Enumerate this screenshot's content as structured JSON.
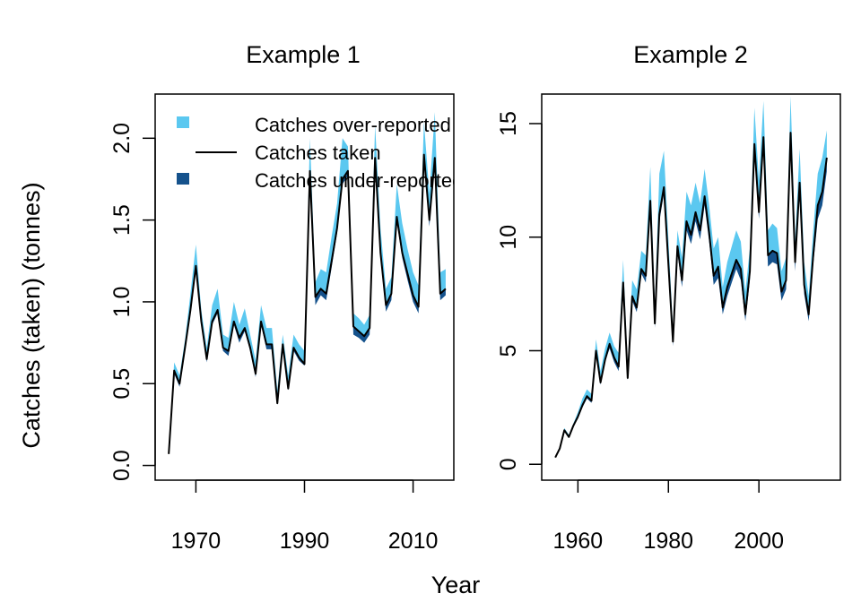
{
  "figure": {
    "xlabel": "Year",
    "ylabel": "Catches (taken) (tonnes)"
  },
  "colors": {
    "over_reported": "#5bc8f0",
    "taken": "#000000",
    "under_reported": "#15528c",
    "frame": "#000000"
  },
  "legend": {
    "items": [
      {
        "label": "Catches over-reported",
        "swatch": "over_reported"
      },
      {
        "label": "Catches taken",
        "swatch": "taken_line"
      },
      {
        "label": "Catches under-reported",
        "swatch": "under_reported"
      }
    ]
  },
  "chart_data": [
    {
      "type": "area",
      "title": "Example 1",
      "xlim": [
        1962.5,
        2017.5
      ],
      "ylim": [
        -0.09,
        2.27
      ],
      "xticks": [
        1970,
        1990,
        2010
      ],
      "xtick_labels": [
        "1970",
        "1990",
        "2010"
      ],
      "yticks": [
        0.0,
        0.5,
        1.0,
        1.5,
        2.0
      ],
      "ytick_labels": [
        "0.0",
        "0.5",
        "1.0",
        "1.5",
        "2.0"
      ],
      "legend_position": "top-right",
      "series": [
        {
          "name": "Catches taken",
          "x": [
            1965,
            1966,
            1967,
            1968,
            1969,
            1970,
            1971,
            1972,
            1973,
            1974,
            1975,
            1976,
            1977,
            1978,
            1979,
            1980,
            1981,
            1982,
            1983,
            1984,
            1985,
            1986,
            1987,
            1988,
            1989,
            1990,
            1991,
            1992,
            1993,
            1994,
            1995,
            1996,
            1997,
            1998,
            1999,
            2000,
            2001,
            2002,
            2003,
            2004,
            2005,
            2006,
            2007,
            2008,
            2009,
            2010,
            2011,
            2012,
            2013,
            2014,
            2015,
            2016
          ],
          "y": [
            0.07,
            0.58,
            0.5,
            0.72,
            0.95,
            1.22,
            0.88,
            0.65,
            0.88,
            0.95,
            0.72,
            0.7,
            0.88,
            0.78,
            0.84,
            0.72,
            0.56,
            0.88,
            0.74,
            0.74,
            0.38,
            0.74,
            0.47,
            0.72,
            0.66,
            0.62,
            1.8,
            1.03,
            1.08,
            1.05,
            1.25,
            1.45,
            1.75,
            1.8,
            0.85,
            0.82,
            0.79,
            0.84,
            1.88,
            1.3,
            0.98,
            1.05,
            1.52,
            1.3,
            1.17,
            1.04,
            0.97,
            1.9,
            1.5,
            1.88,
            1.05,
            1.08
          ]
        },
        {
          "name": "Catches over-reported",
          "x": [
            1965,
            1966,
            1967,
            1968,
            1969,
            1970,
            1971,
            1972,
            1973,
            1974,
            1975,
            1976,
            1977,
            1978,
            1979,
            1980,
            1981,
            1982,
            1983,
            1984,
            1985,
            1986,
            1987,
            1988,
            1989,
            1990,
            1991,
            1992,
            1993,
            1994,
            1995,
            1996,
            1997,
            1998,
            1999,
            2000,
            2001,
            2002,
            2003,
            2004,
            2005,
            2006,
            2007,
            2008,
            2009,
            2010,
            2011,
            2012,
            2013,
            2014,
            2015,
            2016
          ],
          "y": [
            0.07,
            0.63,
            0.55,
            0.77,
            1.05,
            1.35,
            0.95,
            0.72,
            0.98,
            1.08,
            0.8,
            0.78,
            1.0,
            0.86,
            0.96,
            0.8,
            0.64,
            0.98,
            0.84,
            0.84,
            0.46,
            0.8,
            0.55,
            0.8,
            0.74,
            0.7,
            2.0,
            1.12,
            1.2,
            1.18,
            1.4,
            1.6,
            2.0,
            1.95,
            0.93,
            0.9,
            0.86,
            0.92,
            2.08,
            1.45,
            1.08,
            1.15,
            1.72,
            1.48,
            1.32,
            1.18,
            1.1,
            2.1,
            1.66,
            2.16,
            1.18,
            1.2
          ]
        },
        {
          "name": "Catches under-reported",
          "x": [
            1965,
            1966,
            1967,
            1968,
            1969,
            1970,
            1971,
            1972,
            1973,
            1974,
            1975,
            1976,
            1977,
            1978,
            1979,
            1980,
            1981,
            1982,
            1983,
            1984,
            1985,
            1986,
            1987,
            1988,
            1989,
            1990,
            1991,
            1992,
            1993,
            1994,
            1995,
            1996,
            1997,
            1998,
            1999,
            2000,
            2001,
            2002,
            2003,
            2004,
            2005,
            2006,
            2007,
            2008,
            2009,
            2010,
            2011,
            2012,
            2013,
            2014,
            2015,
            2016
          ],
          "y": [
            0.07,
            0.56,
            0.48,
            0.71,
            0.94,
            1.2,
            0.87,
            0.63,
            0.86,
            0.93,
            0.7,
            0.67,
            0.86,
            0.75,
            0.82,
            0.7,
            0.54,
            0.86,
            0.71,
            0.71,
            0.37,
            0.73,
            0.46,
            0.7,
            0.64,
            0.61,
            1.78,
            0.98,
            1.04,
            1.01,
            1.21,
            1.42,
            1.72,
            1.77,
            0.8,
            0.78,
            0.75,
            0.8,
            1.85,
            1.27,
            0.94,
            1.01,
            1.49,
            1.27,
            1.13,
            1.0,
            0.93,
            1.86,
            1.46,
            1.84,
            1.01,
            1.04
          ]
        }
      ]
    },
    {
      "type": "area",
      "title": "Example 2",
      "xlim": [
        1952,
        2018
      ],
      "ylim": [
        -0.7,
        16.3
      ],
      "xticks": [
        1960,
        1980,
        2000
      ],
      "xtick_labels": [
        "1960",
        "1980",
        "2000"
      ],
      "yticks": [
        0,
        5,
        10,
        15
      ],
      "ytick_labels": [
        "0",
        "5",
        "10",
        "15"
      ],
      "series": [
        {
          "name": "Catches taken",
          "x": [
            1955,
            1956,
            1957,
            1958,
            1959,
            1960,
            1961,
            1962,
            1963,
            1964,
            1965,
            1966,
            1967,
            1968,
            1969,
            1970,
            1971,
            1972,
            1973,
            1974,
            1975,
            1976,
            1977,
            1978,
            1979,
            1980,
            1981,
            1982,
            1983,
            1984,
            1985,
            1986,
            1987,
            1988,
            1989,
            1990,
            1991,
            1992,
            1993,
            1994,
            1995,
            1996,
            1997,
            1998,
            1999,
            2000,
            2001,
            2002,
            2003,
            2004,
            2005,
            2006,
            2007,
            2008,
            2009,
            2010,
            2011,
            2012,
            2013,
            2014,
            2015
          ],
          "y": [
            0.3,
            0.7,
            1.5,
            1.2,
            1.7,
            2.1,
            2.6,
            3.0,
            2.8,
            5.0,
            3.6,
            4.6,
            5.3,
            4.7,
            4.3,
            8.0,
            3.8,
            7.4,
            6.9,
            8.6,
            8.3,
            11.6,
            6.2,
            11.0,
            12.2,
            8.8,
            5.4,
            9.6,
            8.1,
            10.7,
            10.1,
            11.1,
            10.3,
            11.8,
            10.2,
            8.3,
            8.7,
            6.9,
            7.8,
            8.4,
            9.0,
            8.6,
            6.6,
            8.5,
            14.1,
            11.1,
            14.4,
            9.2,
            9.4,
            9.3,
            7.6,
            8.1,
            14.6,
            8.9,
            12.4,
            7.9,
            6.6,
            9.2,
            11.4,
            12.0,
            13.5
          ]
        },
        {
          "name": "Catches over-reported",
          "x": [
            1955,
            1956,
            1957,
            1958,
            1959,
            1960,
            1961,
            1962,
            1963,
            1964,
            1965,
            1966,
            1967,
            1968,
            1969,
            1970,
            1971,
            1972,
            1973,
            1974,
            1975,
            1976,
            1977,
            1978,
            1979,
            1980,
            1981,
            1982,
            1983,
            1984,
            1985,
            1986,
            1987,
            1988,
            1989,
            1990,
            1991,
            1992,
            1993,
            1994,
            1995,
            1996,
            1997,
            1998,
            1999,
            2000,
            2001,
            2002,
            2003,
            2004,
            2005,
            2006,
            2007,
            2008,
            2009,
            2010,
            2011,
            2012,
            2013,
            2014,
            2015
          ],
          "y": [
            0.3,
            0.8,
            1.6,
            1.3,
            1.8,
            2.3,
            2.9,
            3.3,
            3.1,
            5.5,
            4.1,
            5.1,
            5.8,
            5.2,
            4.9,
            9.0,
            4.4,
            8.1,
            7.7,
            9.4,
            9.2,
            13.1,
            7.0,
            12.8,
            13.8,
            9.9,
            6.0,
            10.3,
            9.1,
            12.0,
            11.4,
            12.4,
            11.5,
            13.0,
            11.4,
            9.5,
            10.0,
            7.8,
            8.9,
            9.6,
            10.3,
            9.8,
            7.6,
            9.5,
            15.7,
            12.5,
            16.0,
            10.3,
            10.6,
            10.4,
            8.5,
            9.1,
            16.2,
            9.9,
            13.9,
            8.9,
            7.4,
            10.3,
            12.8,
            13.5,
            14.7
          ]
        },
        {
          "name": "Catches under-reported",
          "x": [
            1955,
            1956,
            1957,
            1958,
            1959,
            1960,
            1961,
            1962,
            1963,
            1964,
            1965,
            1966,
            1967,
            1968,
            1969,
            1970,
            1971,
            1972,
            1973,
            1974,
            1975,
            1976,
            1977,
            1978,
            1979,
            1980,
            1981,
            1982,
            1983,
            1984,
            1985,
            1986,
            1987,
            1988,
            1989,
            1990,
            1991,
            1992,
            1993,
            1994,
            1995,
            1996,
            1997,
            1998,
            1999,
            2000,
            2001,
            2002,
            2003,
            2004,
            2005,
            2006,
            2007,
            2008,
            2009,
            2010,
            2011,
            2012,
            2013,
            2014,
            2015
          ],
          "y": [
            0.3,
            0.7,
            1.5,
            1.2,
            1.7,
            2.0,
            2.5,
            2.9,
            2.7,
            4.8,
            3.5,
            4.5,
            5.1,
            4.5,
            4.1,
            7.8,
            3.7,
            7.2,
            6.7,
            8.4,
            8.0,
            11.3,
            6.0,
            10.7,
            11.9,
            8.5,
            5.2,
            9.3,
            7.8,
            10.3,
            9.7,
            10.7,
            9.9,
            11.4,
            9.8,
            7.9,
            8.2,
            6.6,
            7.4,
            8.0,
            8.6,
            8.1,
            6.3,
            8.1,
            13.7,
            10.8,
            14.0,
            8.7,
            8.9,
            8.8,
            7.2,
            7.7,
            14.2,
            8.5,
            11.9,
            7.5,
            6.3,
            8.8,
            10.8,
            11.4,
            12.9
          ]
        }
      ]
    }
  ]
}
